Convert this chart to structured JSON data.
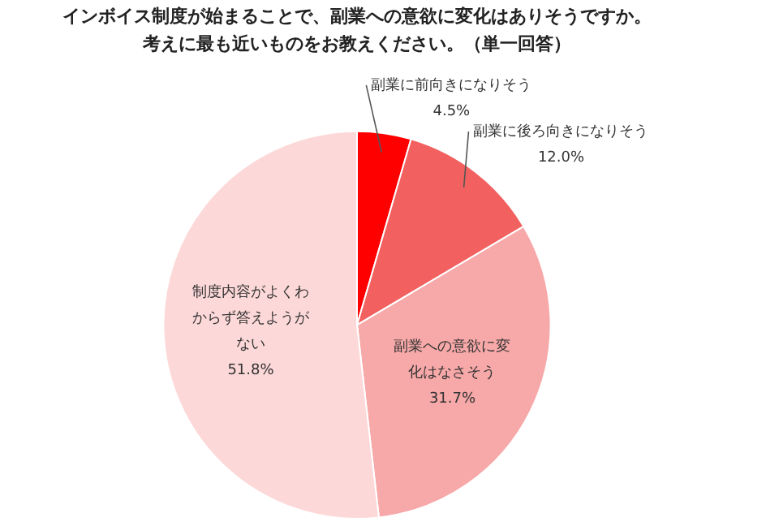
{
  "chart_data": {
    "type": "pie",
    "title": "インボイス制度が始まることで、副業への意欲に変化はありそうですか。",
    "subtitle": "考えに最も近いものをお教えください。（単一回答）",
    "categories": [
      "副業に前向きになりそう",
      "副業に後ろ向きになりそう",
      "副業への意欲に変化はなさそう",
      "制度内容がよくわからず答えようがない"
    ],
    "values": [
      4.5,
      12.0,
      31.7,
      51.8
    ],
    "value_labels": [
      "4.5%",
      "12.0%",
      "31.7%",
      "51.8%"
    ],
    "colors": [
      "#ff0000",
      "#f26060",
      "#f7a8a8",
      "#fdd8d8"
    ],
    "legend": false
  }
}
